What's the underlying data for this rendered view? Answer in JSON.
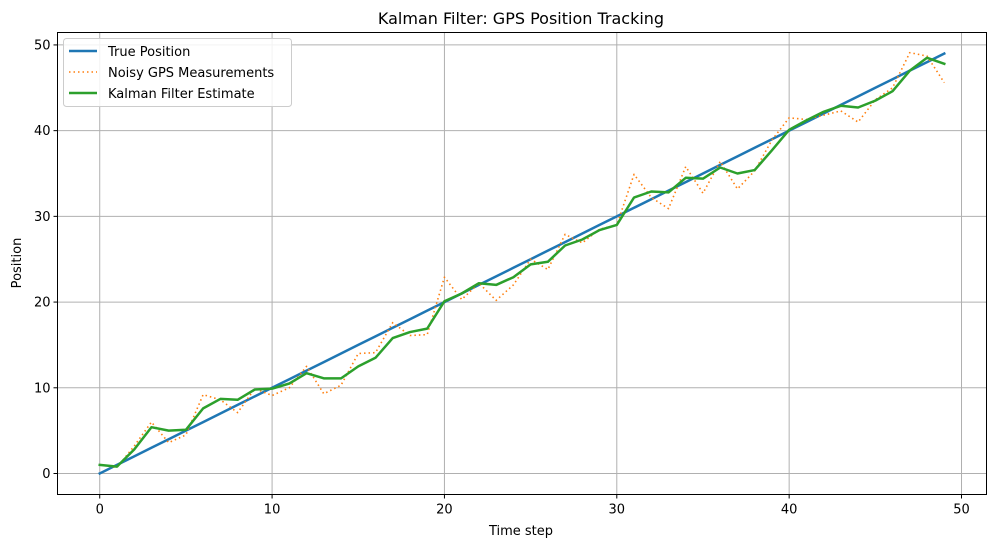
{
  "chart_data": {
    "type": "line",
    "title": "Kalman Filter: GPS Position Tracking",
    "xlabel": "Time step",
    "ylabel": "Position",
    "xlim": [
      -2.45,
      51.45
    ],
    "ylim": [
      -2.45,
      51.45
    ],
    "xticks": [
      0,
      10,
      20,
      30,
      40,
      50
    ],
    "yticks": [
      0,
      10,
      20,
      30,
      40,
      50
    ],
    "grid": true,
    "legend_position": "top-left",
    "x": [
      0,
      1,
      2,
      3,
      4,
      5,
      6,
      7,
      8,
      9,
      10,
      11,
      12,
      13,
      14,
      15,
      16,
      17,
      18,
      19,
      20,
      21,
      22,
      23,
      24,
      25,
      26,
      27,
      28,
      29,
      30,
      31,
      32,
      33,
      34,
      35,
      36,
      37,
      38,
      39,
      40,
      41,
      42,
      43,
      44,
      45,
      46,
      47,
      48,
      49
    ],
    "series": [
      {
        "name": "True Position",
        "color": "#1f77b4",
        "style": "solid",
        "values": [
          0,
          1,
          2,
          3,
          4,
          5,
          6,
          7,
          8,
          9,
          10,
          11,
          12,
          13,
          14,
          15,
          16,
          17,
          18,
          19,
          20,
          21,
          22,
          23,
          24,
          25,
          26,
          27,
          28,
          29,
          30,
          31,
          32,
          33,
          34,
          35,
          36,
          37,
          38,
          39,
          40,
          41,
          42,
          43,
          44,
          45,
          46,
          47,
          48,
          49
        ]
      },
      {
        "name": "Noisy GPS Measurements",
        "color": "#ff7f0e",
        "style": "dotted",
        "values": [
          1.0,
          0.7,
          3.2,
          6.0,
          3.6,
          4.5,
          9.2,
          8.6,
          7.1,
          9.9,
          9.1,
          10.0,
          12.5,
          9.3,
          10.3,
          14.0,
          14.1,
          17.6,
          16.1,
          16.2,
          22.9,
          20.3,
          22.2,
          20.2,
          22.0,
          25.0,
          23.8,
          27.9,
          26.9,
          28.5,
          29.0,
          34.9,
          32.2,
          30.9,
          35.8,
          32.7,
          36.4,
          33.2,
          35.3,
          38.9,
          41.5,
          41.3,
          41.8,
          42.3,
          41.0,
          43.6,
          45.0,
          49.1,
          48.7,
          45.6
        ]
      },
      {
        "name": "Kalman Filter Estimate",
        "color": "#2ca02c",
        "style": "solid",
        "values": [
          1.0,
          0.8,
          2.8,
          5.4,
          5.0,
          5.1,
          7.6,
          8.7,
          8.6,
          9.8,
          9.9,
          10.5,
          11.7,
          11.1,
          11.1,
          12.5,
          13.5,
          15.8,
          16.5,
          16.9,
          20.1,
          21.0,
          22.2,
          22.0,
          22.9,
          24.4,
          24.7,
          26.6,
          27.3,
          28.4,
          29.0,
          32.2,
          32.9,
          32.8,
          34.5,
          34.4,
          35.7,
          35.0,
          35.4,
          37.7,
          40.1,
          41.2,
          42.2,
          42.9,
          42.7,
          43.5,
          44.6,
          47.0,
          48.5,
          47.8
        ]
      }
    ]
  }
}
